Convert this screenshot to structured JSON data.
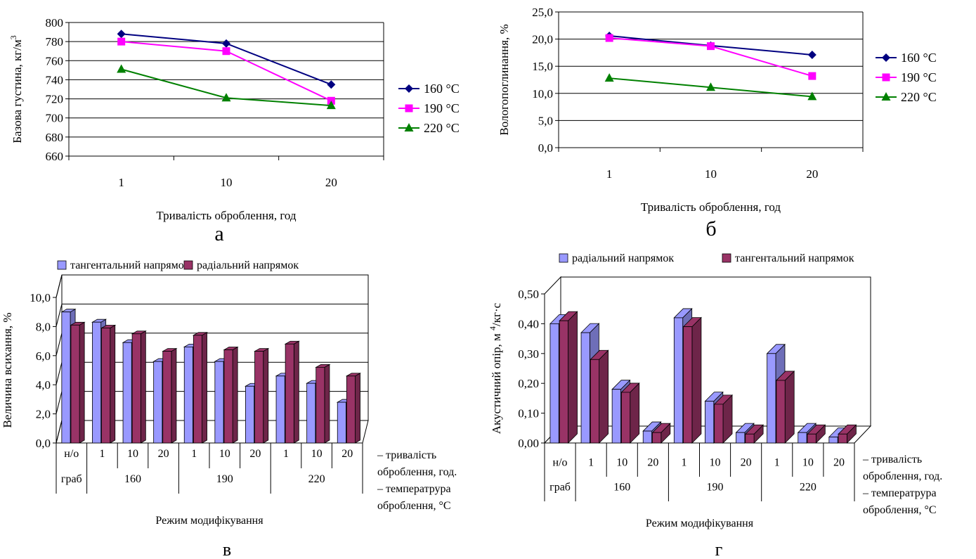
{
  "chart_data": [
    {
      "panel_label": "а",
      "type": "line",
      "categories": [
        "1",
        "10",
        "20"
      ],
      "xlabel": "Тривалість оброблення, год",
      "ylabel": "Базова густина, кг/м",
      "ylabel_unit_sup": "3",
      "ylim": [
        660,
        800
      ],
      "yticks": [
        "660",
        "680",
        "700",
        "720",
        "740",
        "760",
        "780",
        "800"
      ],
      "grid": true,
      "legend_position": "right",
      "series": [
        {
          "name": "160 °C",
          "values": [
            788,
            778,
            735
          ],
          "color": "#000080",
          "marker": "diamond"
        },
        {
          "name": "190 °C",
          "values": [
            780,
            770,
            718
          ],
          "color": "#ff00ff",
          "marker": "square"
        },
        {
          "name": "220 °C",
          "values": [
            751,
            721,
            713
          ],
          "color": "#008000",
          "marker": "triangle"
        }
      ]
    },
    {
      "panel_label": "б",
      "type": "line",
      "categories": [
        "1",
        "10",
        "20"
      ],
      "xlabel": "Тривалість оброблення, год",
      "ylabel": "Вологопоглинання, %",
      "ylim": [
        0,
        25
      ],
      "yticks": [
        "0,0",
        "5,0",
        "10,0",
        "15,0",
        "20,0",
        "25,0"
      ],
      "grid": true,
      "legend_position": "right",
      "series": [
        {
          "name": "160 °C",
          "values": [
            20.6,
            18.8,
            17.1
          ],
          "color": "#000080",
          "marker": "diamond"
        },
        {
          "name": "190 °C",
          "values": [
            20.2,
            18.7,
            13.2
          ],
          "color": "#ff00ff",
          "marker": "square"
        },
        {
          "name": "220 °C",
          "values": [
            12.8,
            11.1,
            9.4
          ],
          "color": "#008000",
          "marker": "triangle"
        }
      ]
    },
    {
      "panel_label": "в",
      "type": "bar",
      "categories": [
        "н/о",
        "1",
        "10",
        "20",
        "1",
        "10",
        "20",
        "1",
        "10",
        "20"
      ],
      "groups": [
        {
          "label": "граб",
          "span": 1
        },
        {
          "label": "160",
          "span": 3
        },
        {
          "label": "190",
          "span": 3
        },
        {
          "label": "220",
          "span": 3
        }
      ],
      "xlabel": "Режим модифікування",
      "ylabel": "Величина всихання, %",
      "ylim": [
        0,
        10
      ],
      "yticks": [
        "0,0",
        "2,0",
        "4,0",
        "6,0",
        "8,0",
        "10,0"
      ],
      "grid": true,
      "legend_position": "top",
      "side_notes": [
        "– тривалість",
        "оброблення, год.",
        "– температрура",
        "оброблення, °С"
      ],
      "series": [
        {
          "name": "тангентальний напрямок",
          "values": [
            9.0,
            8.3,
            6.9,
            5.6,
            6.6,
            5.6,
            3.9,
            4.6,
            4.1,
            2.8
          ],
          "color": "#9999ff"
        },
        {
          "name": "радіальний напрямок",
          "values": [
            8.1,
            7.9,
            7.5,
            6.3,
            7.4,
            6.4,
            6.3,
            6.8,
            5.2,
            4.6
          ],
          "color": "#993366"
        }
      ]
    },
    {
      "panel_label": "г",
      "type": "bar",
      "categories": [
        "н/о",
        "1",
        "10",
        "20",
        "1",
        "10",
        "20",
        "1",
        "10",
        "20"
      ],
      "groups": [
        {
          "label": "граб",
          "span": 1
        },
        {
          "label": "160",
          "span": 3
        },
        {
          "label": "190",
          "span": 3
        },
        {
          "label": "220",
          "span": 3
        }
      ],
      "xlabel": "Режим модифікування",
      "ylabel": "Акустичний опір, м /кг·с",
      "ylabel_unit_sup": "4",
      "ylim": [
        0,
        0.5
      ],
      "yticks": [
        "0,00",
        "0,10",
        "0,20",
        "0,30",
        "0,40",
        "0,50"
      ],
      "grid": false,
      "legend_position": "top",
      "side_notes": [
        "– тривалість",
        "оброблення, год.",
        "– температрура",
        "оброблення, °С"
      ],
      "series": [
        {
          "name": "радіальний напрямок",
          "values": [
            0.4,
            0.37,
            0.18,
            0.04,
            0.42,
            0.14,
            0.035,
            0.3,
            0.035,
            0.02
          ],
          "color": "#9999ff"
        },
        {
          "name": "тангентальний напрямок",
          "values": [
            0.41,
            0.28,
            0.17,
            0.035,
            0.39,
            0.13,
            0.03,
            0.21,
            0.03,
            0.03
          ],
          "color": "#993366"
        }
      ]
    }
  ]
}
